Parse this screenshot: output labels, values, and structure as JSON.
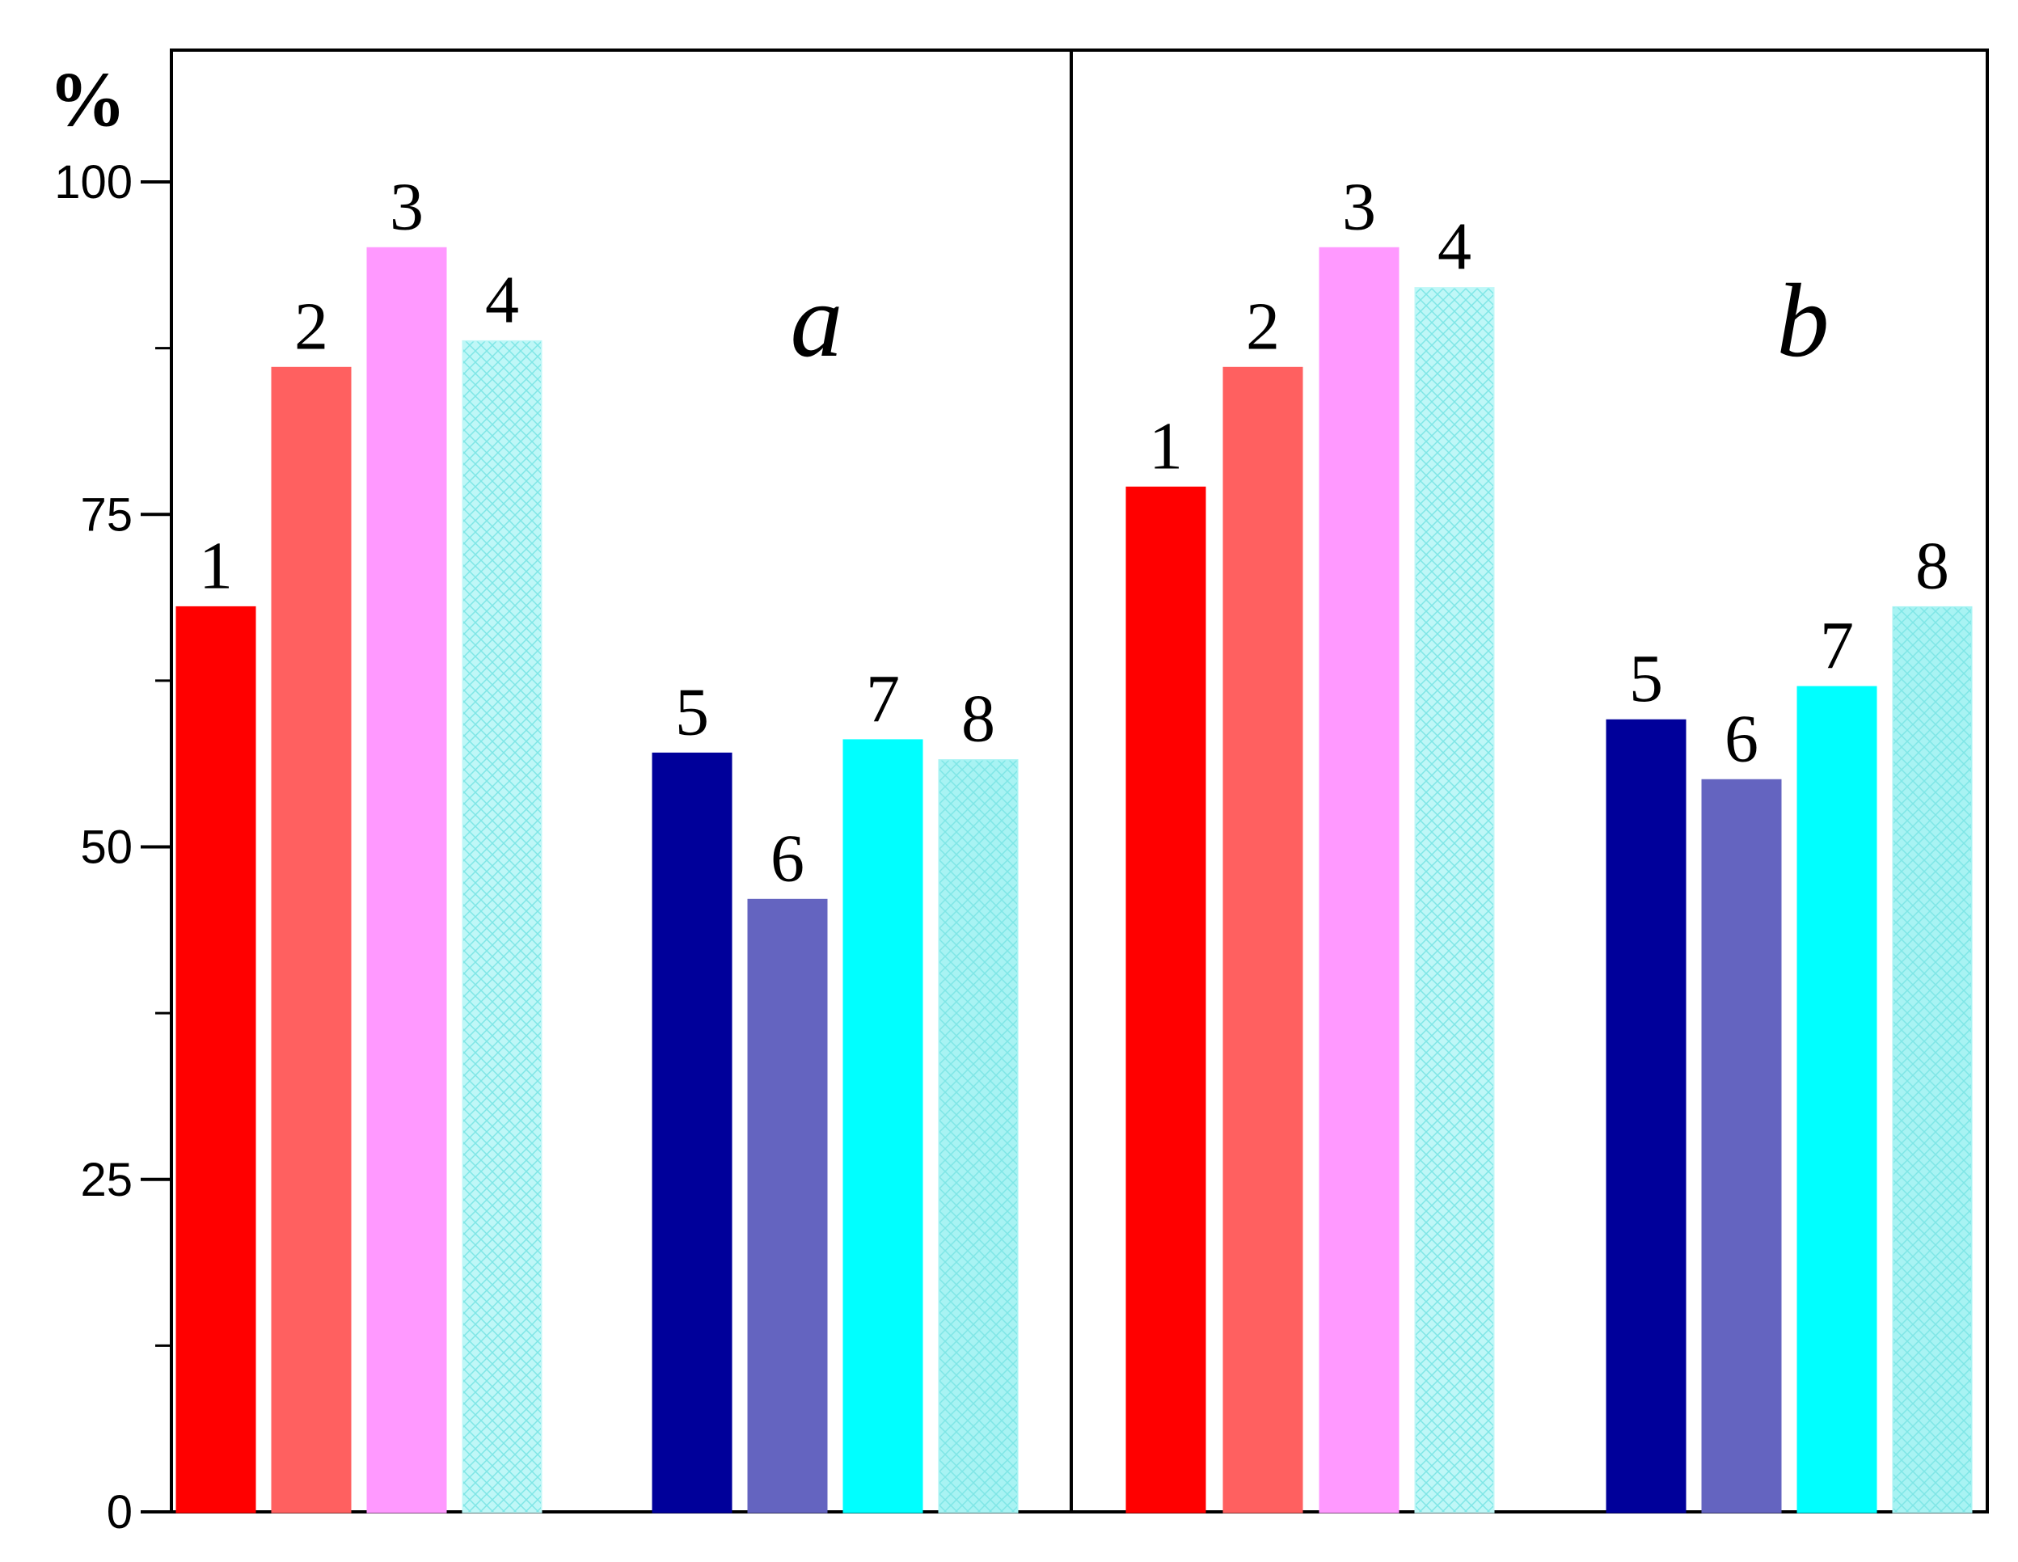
{
  "chart_data": {
    "type": "bar",
    "unit_label": "%",
    "ylim": [
      0,
      110
    ],
    "yticks": [
      "0",
      "25",
      "50",
      "75",
      "100"
    ],
    "grid": false,
    "colors": [
      "#ff0000",
      "#ff6060",
      "#ff99ff",
      "#bff7f7",
      "#00009a",
      "#6464c0",
      "#00ffff",
      "#a8f3f3"
    ],
    "panels": [
      {
        "label": "a",
        "categories": [
          "1",
          "2",
          "3",
          "4",
          "5",
          "6",
          "7",
          "8"
        ],
        "values": [
          68,
          86,
          95,
          88,
          57,
          46,
          58,
          56.5
        ]
      },
      {
        "label": "b",
        "categories": [
          "1",
          "2",
          "3",
          "4",
          "5",
          "6",
          "7",
          "8"
        ],
        "values": [
          77,
          86,
          95,
          92,
          59.5,
          55,
          62,
          68
        ]
      }
    ]
  }
}
